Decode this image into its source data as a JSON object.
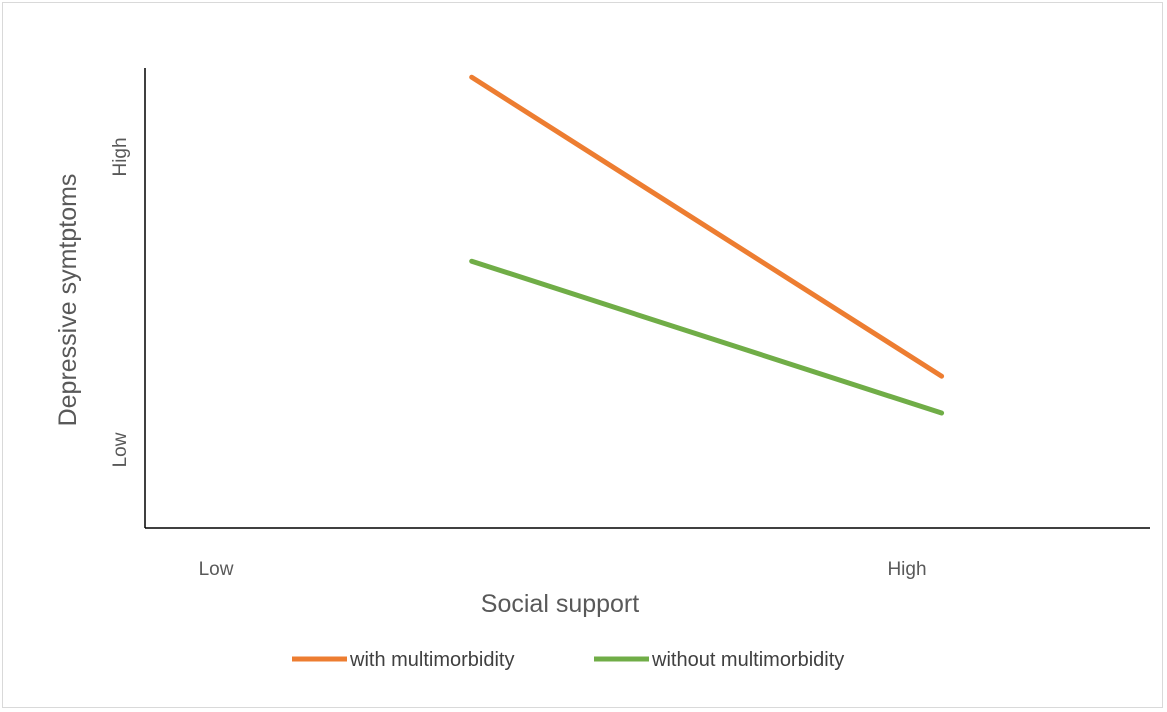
{
  "chart_data": {
    "type": "line",
    "title": "",
    "xlabel": "Social support",
    "ylabel": "Depressive symtptoms",
    "categories": [
      "Low",
      "High"
    ],
    "y_tick_labels": [
      "Low",
      "High"
    ],
    "ylim": [
      0,
      10
    ],
    "grid": false,
    "legend_position": "bottom",
    "series": [
      {
        "name": "with multimorbidity",
        "color": "#ed7d31",
        "points": [
          [
            0.37,
            9.8
          ],
          [
            1.05,
            3.3
          ]
        ]
      },
      {
        "name": "without multimorbidity",
        "color": "#70ad47",
        "points": [
          [
            0.37,
            5.8
          ],
          [
            1.05,
            2.5
          ]
        ]
      }
    ]
  }
}
